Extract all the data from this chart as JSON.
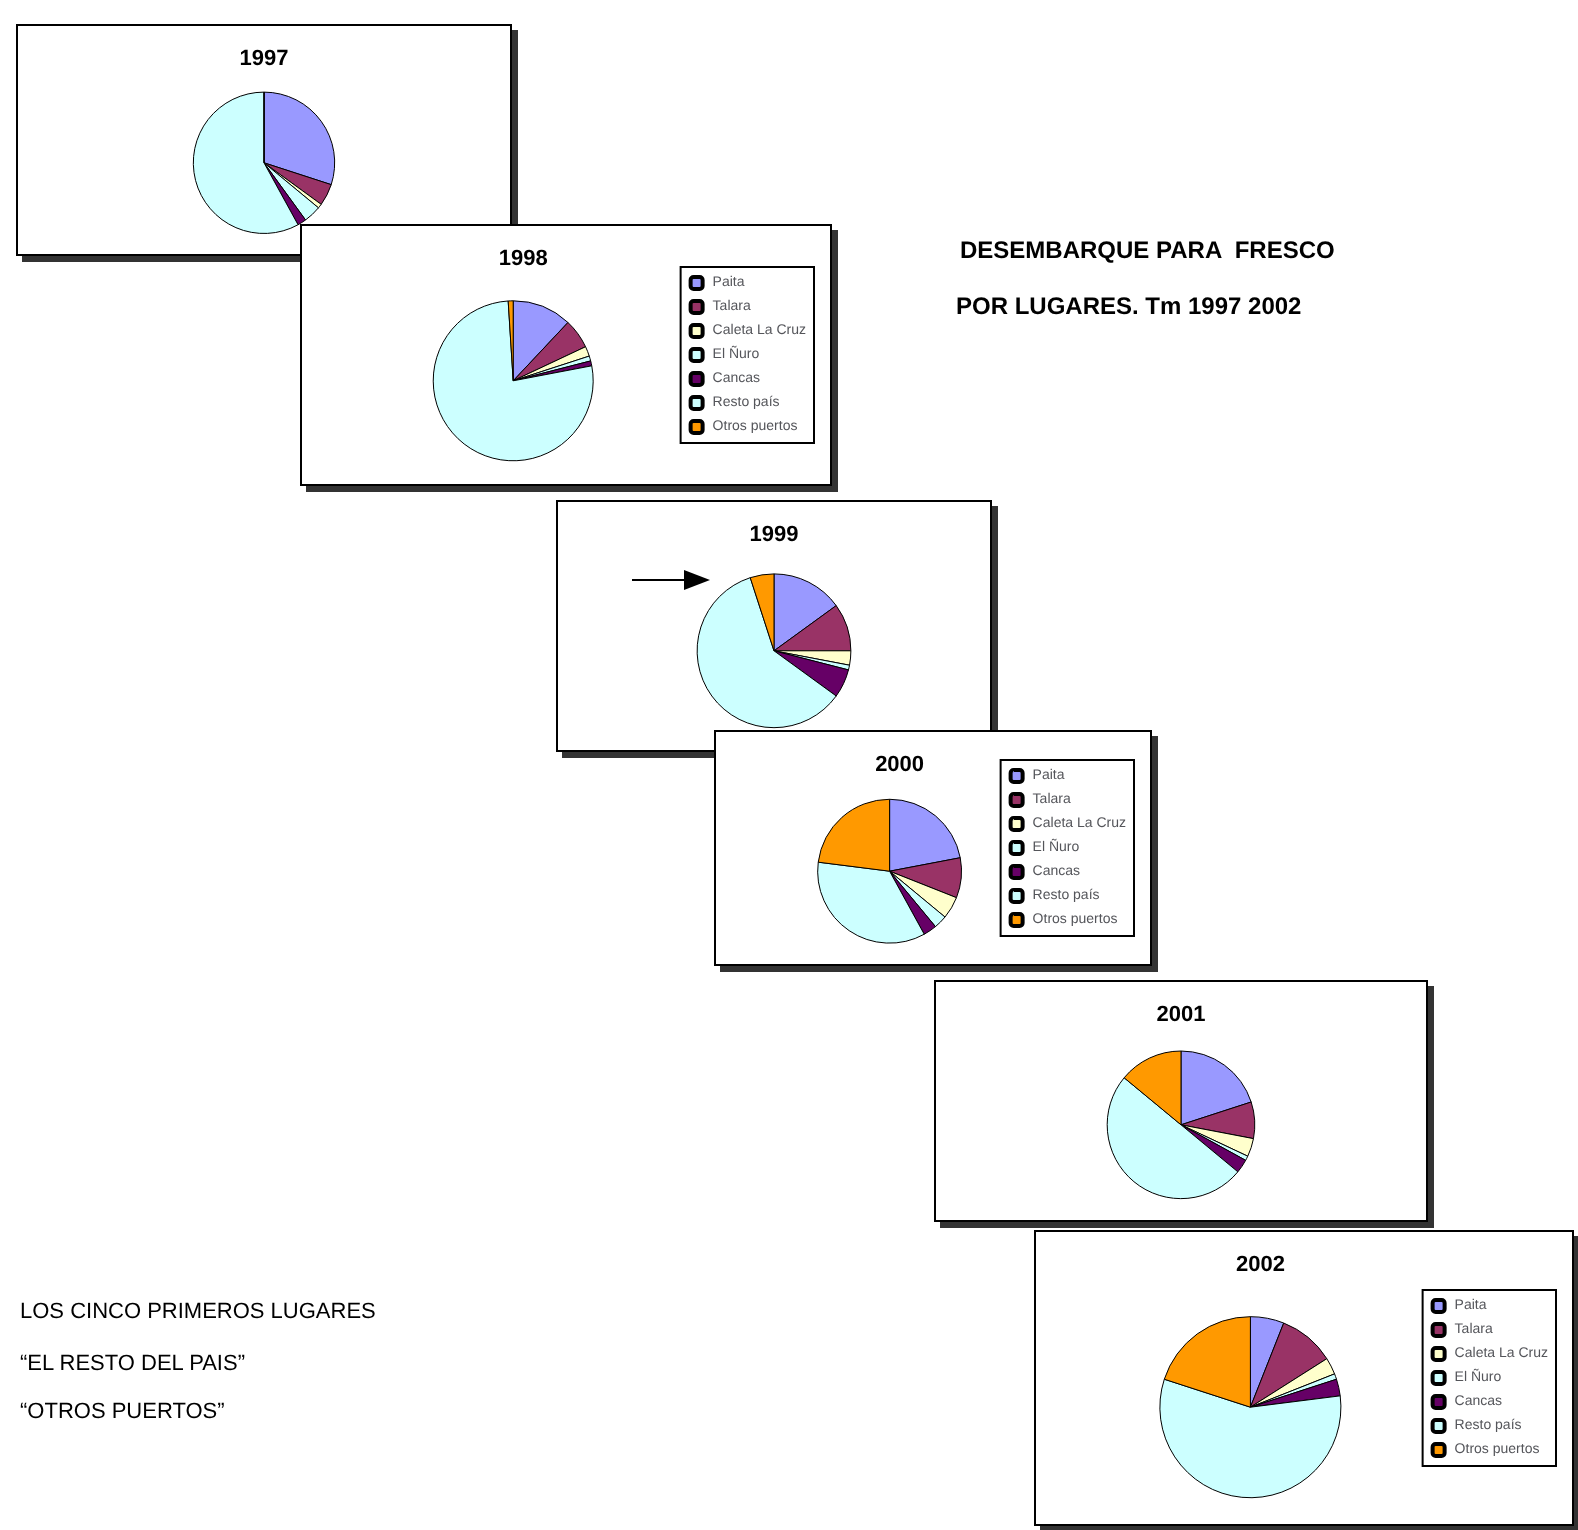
{
  "chart_data": [
    {
      "type": "pie",
      "title": "1997",
      "categories": [
        null,
        null,
        null,
        null,
        null,
        null,
        null
      ],
      "values": [
        30,
        5,
        1,
        4,
        2,
        58,
        0
      ],
      "colors": [
        "#9999ff",
        "#993366",
        "#ffffcc",
        "#ccffff",
        "#660066",
        "#ccffff",
        "#ff9900"
      ],
      "legend": false,
      "annotations": [
        "DESEMBARQUE PARA  FRESCO",
        "POR LUGARES. Tm 1997 2002",
        "LOS CINCO PRIMEROS LUGARES",
        "“EL RESTO DEL PAIS”",
        "“OTROS PUERTOS”"
      ]
    },
    {
      "type": "pie",
      "title": "1998",
      "categories": [
        "Paita",
        "Talara",
        "Caleta La Cruz",
        "El Ñuro",
        "Cancas",
        "Resto país",
        "Otros puertos"
      ],
      "values": [
        12,
        6,
        2,
        1,
        1,
        77,
        1
      ],
      "colors": [
        "#9999ff",
        "#993366",
        "#ffffcc",
        "#ccffff",
        "#660066",
        "#ccffff",
        "#ff9900"
      ],
      "legend": "right"
    },
    {
      "type": "pie",
      "title": "1999",
      "categories": [
        null,
        null,
        null,
        null,
        null,
        null,
        null
      ],
      "values": [
        15,
        10,
        3,
        1,
        6,
        60,
        5
      ],
      "colors": [
        "#9999ff",
        "#993366",
        "#ffffcc",
        "#ccffff",
        "#660066",
        "#ccffff",
        "#ff9900"
      ],
      "legend": false
    },
    {
      "type": "pie",
      "title": "2000",
      "categories": [
        "Paita",
        "Talara",
        "Caleta La Cruz",
        "El Ñuro",
        "Cancas",
        "Resto país",
        "Otros puertos"
      ],
      "values": [
        22,
        9,
        5,
        3,
        3,
        35,
        23
      ],
      "colors": [
        "#9999ff",
        "#993366",
        "#ffffcc",
        "#ccffff",
        "#660066",
        "#ccffff",
        "#ff9900"
      ],
      "legend": "right"
    },
    {
      "type": "pie",
      "title": "2001",
      "categories": [
        null,
        null,
        null,
        null,
        null,
        null,
        null
      ],
      "values": [
        20,
        8,
        4,
        1,
        3,
        50,
        14
      ],
      "colors": [
        "#9999ff",
        "#993366",
        "#ffffcc",
        "#ccffff",
        "#660066",
        "#ccffff",
        "#ff9900"
      ],
      "legend": false
    },
    {
      "type": "pie",
      "title": "2002",
      "categories": [
        "Paita",
        "Talara",
        "Caleta La Cruz",
        "El Ñuro",
        "Cancas",
        "Resto país",
        "Otros puertos"
      ],
      "values": [
        6,
        10,
        3,
        1,
        3,
        57,
        20
      ],
      "colors": [
        "#9999ff",
        "#993366",
        "#ffffcc",
        "#ccffff",
        "#660066",
        "#ccffff",
        "#ff9900"
      ],
      "legend": "right"
    }
  ]
}
